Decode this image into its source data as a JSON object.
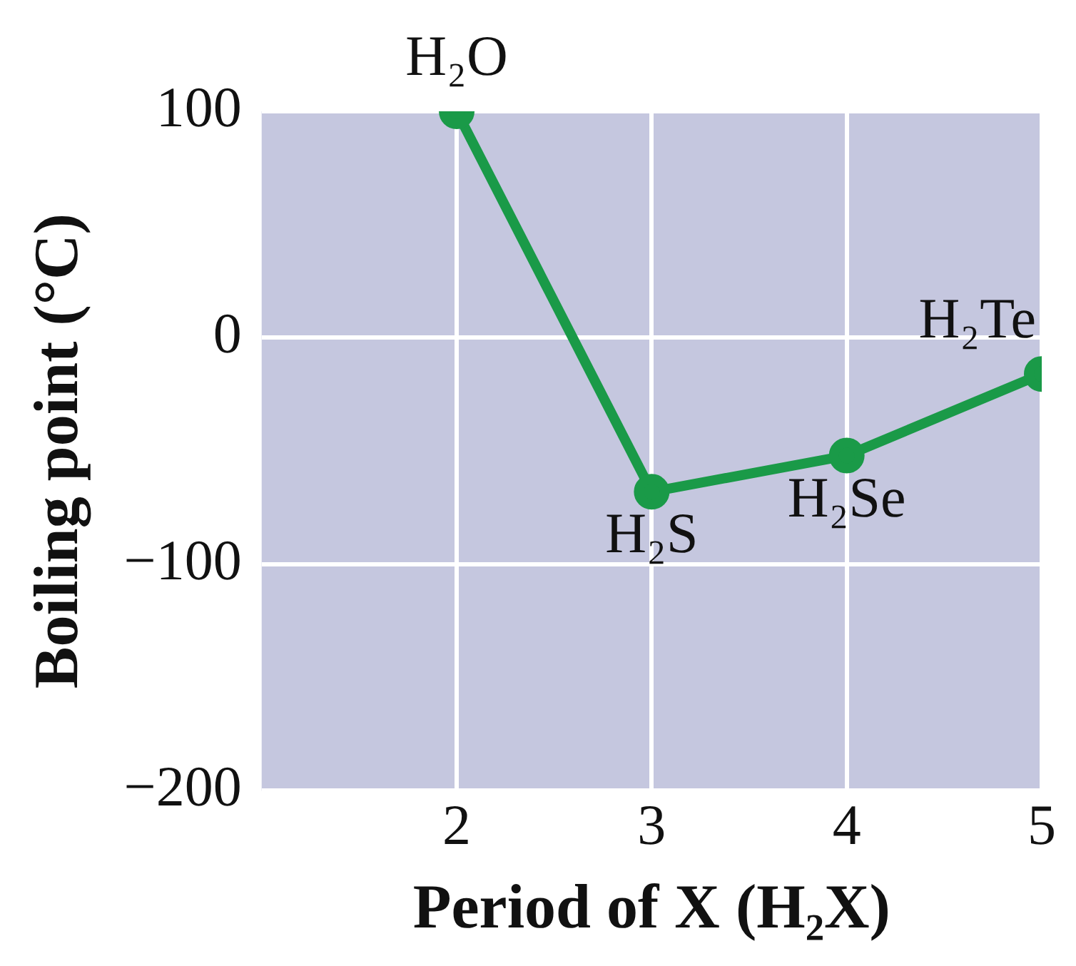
{
  "chart_data": {
    "type": "line",
    "xlabel": "Period of X (H₂X)",
    "ylabel": "Boiling point (°C)",
    "x": [
      2,
      3,
      4,
      5
    ],
    "series": [
      {
        "color": "#1a9a48",
        "values": [
          100,
          -68,
          -52,
          -16
        ]
      }
    ],
    "xlim": [
      1,
      5
    ],
    "xticks": [
      2,
      3,
      4,
      5
    ],
    "ylim": [
      -200,
      100
    ],
    "yticks": [
      -200,
      -100,
      0,
      100
    ],
    "grid": true,
    "marker": "circle",
    "line_style": "solid",
    "legend": false,
    "annotations": [
      {
        "text": "H₂O",
        "x": 2,
        "y": 100
      },
      {
        "text": "H₂S",
        "x": 3,
        "y": -68
      },
      {
        "text": "H₂Se",
        "x": 4,
        "y": -52
      },
      {
        "text": "H₂Te",
        "x": 5,
        "y": -16
      }
    ]
  }
}
